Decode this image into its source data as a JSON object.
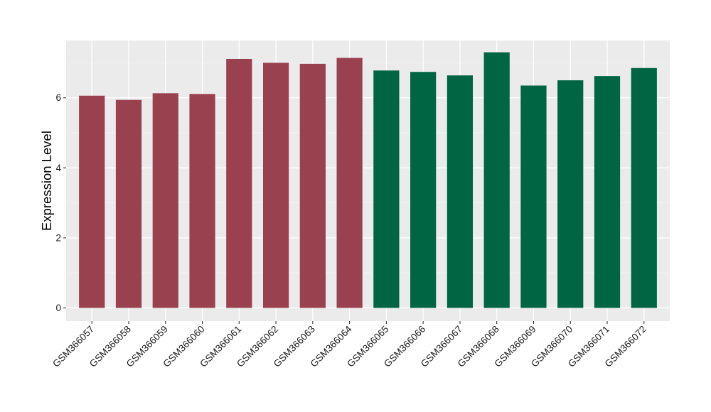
{
  "chart_data": {
    "type": "bar",
    "title": "",
    "xlabel": "",
    "ylabel": "Expression Level",
    "ylim": [
      -0.32,
      7.55
    ],
    "yticks": [
      0,
      2,
      4,
      6
    ],
    "grid": true,
    "legend": "none",
    "panel_background": "#ebebeb",
    "categories": [
      "GSM366057",
      "GSM366058",
      "GSM366059",
      "GSM366060",
      "GSM366061",
      "GSM366062",
      "GSM366063",
      "GSM366064",
      "GSM366065",
      "GSM366066",
      "GSM366067",
      "GSM366068",
      "GSM366069",
      "GSM366070",
      "GSM366071",
      "GSM366072"
    ],
    "values": [
      6.06,
      5.94,
      6.13,
      6.11,
      7.11,
      7.0,
      6.97,
      7.14,
      6.78,
      6.74,
      6.64,
      7.3,
      6.35,
      6.5,
      6.62,
      6.85
    ],
    "bar_colors": [
      "#9a4150",
      "#9a4150",
      "#9a4150",
      "#9a4150",
      "#9a4150",
      "#9a4150",
      "#9a4150",
      "#9a4150",
      "#006543",
      "#006543",
      "#006543",
      "#006543",
      "#006543",
      "#006543",
      "#006543",
      "#006543"
    ]
  }
}
